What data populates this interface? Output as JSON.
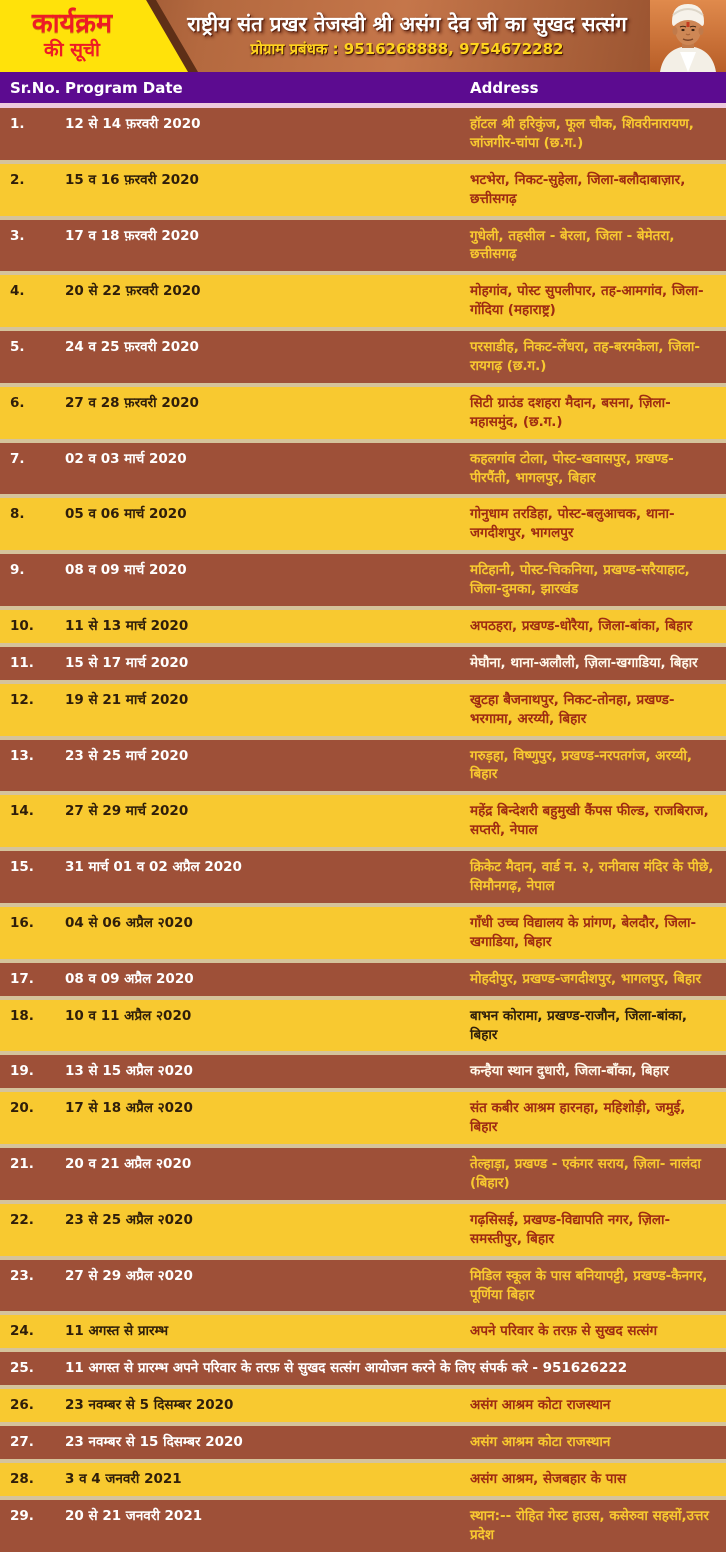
{
  "header": {
    "badge_line1": "कार्यक्रम",
    "badge_line2": "की सूची",
    "title": "राष्ट्रीय संत प्रखर तेजस्वी श्री असंग देव जी का सुखद सत्संग",
    "subtitle": "प्रोग्राम प्रबंधक : 9516268888, 9754672282",
    "photo_alt": "saint-portrait"
  },
  "columns": {
    "sr": "Sr.No.",
    "date": "Program Date",
    "address": "Address"
  },
  "colors": {
    "row_brown": "#9E5038",
    "row_yellow": "#F8C930",
    "header_purple": "#5C0B90",
    "badge_yellow": "#FFE20A",
    "badge_text_red": "#EE1C25",
    "separator_cream": "#D5C39B",
    "separator_pink": "#EDC9DD",
    "address_maroon": "#9E2B12",
    "subtitle_yellow": "#FFD41E"
  },
  "rows": [
    {
      "sr": "1.",
      "date": "12 से 14 फ़रवरी 2020",
      "address": "हॉटल श्री हरिकुंज, फूल चौक, शिवरीनारायण, जांजगीर-चांपा (छ.ग.)",
      "theme": "brown",
      "addr_style": "yellow",
      "span": false
    },
    {
      "sr": "2.",
      "date": "15 व 16 फ़रवरी 2020",
      "address": "भटभेरा, निकट-सुहेला, जिला-बलौदाबाज़ार, छत्तीसगढ़",
      "theme": "yellow",
      "addr_style": "maroon",
      "span": false
    },
    {
      "sr": "3.",
      "date": "17 व 18 फ़रवरी 2020",
      "address": "गुधेली, तहसील - बेरला, जिला - बेमेतरा, छत्तीसगढ़",
      "theme": "brown",
      "addr_style": "yellow",
      "span": false
    },
    {
      "sr": "4.",
      "date": "20 से 22 फ़रवरी 2020",
      "address": "मोहगांव, पोस्ट सुपलीपार, तह-आमगांव, जिला-गोंदिया (महाराष्ट्र)",
      "theme": "yellow",
      "addr_style": "maroon",
      "span": false
    },
    {
      "sr": "5.",
      "date": "24 व 25 फ़रवरी 2020",
      "address": "परसाडीह, निकट-लेंधरा, तह-बरमकेला, जिला-रायगढ़ (छ.ग.)",
      "theme": "brown",
      "addr_style": "yellow",
      "span": false
    },
    {
      "sr": "6.",
      "date": "27 व 28 फ़रवरी 2020",
      "address": "सिटी ग्राउंड दशहरा मैदान, बसना, ज़िला-महासमुंद, (छ.ग.)",
      "theme": "yellow",
      "addr_style": "maroon",
      "span": false
    },
    {
      "sr": "7.",
      "date": "02 व 03 मार्च 2020",
      "address": "कहलगांव टोला, पोस्ट-खवासपुर, प्रखण्ड-पीरपैंती, भागलपुर, बिहार",
      "theme": "brown",
      "addr_style": "yellow",
      "span": false
    },
    {
      "sr": "8.",
      "date": "05 व 06 मार्च 2020",
      "address": "गोनुधाम तरडिहा, पोस्ट-बलुआचक, थाना-जगदीशपुर, भागलपुर",
      "theme": "yellow",
      "addr_style": "maroon",
      "span": false
    },
    {
      "sr": "9.",
      "date": "08 व 09 मार्च 2020",
      "address": "मटिहानी, पोस्ट-चिकनिया, प्रखण्ड-सरैयाहाट, जिला-दुमका, झारखंड",
      "theme": "brown",
      "addr_style": "yellow",
      "span": false
    },
    {
      "sr": "10.",
      "date": "11 से 13 मार्च 2020",
      "address": "अपठहरा, प्रखण्ड-धोरैया, जिला-बांका, बिहार",
      "theme": "yellow",
      "addr_style": "maroon",
      "span": false
    },
    {
      "sr": "11.",
      "date": "15 से 17 मार्च 2020",
      "address": "मेघौना, थाना-अलौली, ज़िला-खगाडिया, बिहार",
      "theme": "brown",
      "addr_style": "white",
      "span": false
    },
    {
      "sr": "12.",
      "date": "19 से 21 मार्च 2020",
      "address": "खुटहा बैजनाथपुर, निकट-तोनहा, प्रखण्ड-भरगामा, अरय्यी, बिहार",
      "theme": "yellow",
      "addr_style": "maroon",
      "span": false
    },
    {
      "sr": "13.",
      "date": "23 से 25 मार्च 2020",
      "address": "गरुड़हा, विष्णुपुर, प्रखण्ड-नरपतगंज, अरय्यी, बिहार",
      "theme": "brown",
      "addr_style": "yellow",
      "span": false
    },
    {
      "sr": "14.",
      "date": "27 से 29 मार्च 2020",
      "address": "महेंद्र बिन्देशरी बहुमुखी कैंपस फील्ड, राजबिराज, सप्तरी, नेपाल",
      "theme": "yellow",
      "addr_style": "maroon",
      "span": false
    },
    {
      "sr": "15.",
      "date": "31 मार्च 01 व 02 अप्रैल 2020",
      "address": "क्रिकेट मैदान, वार्ड न. २, रानीवास मंदिर के पीछे, सिमौनगढ़, नेपाल",
      "theme": "brown",
      "addr_style": "yellow",
      "span": false
    },
    {
      "sr": "16.",
      "date": "04 से 06 अप्रैल २020",
      "address": "गाँधी उच्च विद्यालय के प्रांगण, बेलदौर, जिला-खगाडिया, बिहार",
      "theme": "yellow",
      "addr_style": "maroon",
      "span": false
    },
    {
      "sr": "17.",
      "date": "08 व 09 अप्रैल 2020",
      "address": "मोहदीपुर, प्रखण्ड-जगदीशपुर, भागलपुर, बिहार",
      "theme": "brown",
      "addr_style": "yellow",
      "span": false
    },
    {
      "sr": "18.",
      "date": "10 व 11 अप्रैल २020",
      "address": "बाभन कोरामा, प्रखण्ड-राजौन, जिला-बांका, बिहार",
      "theme": "yellow",
      "addr_style": "dark",
      "span": false
    },
    {
      "sr": "19.",
      "date": "13 से 15 अप्रैल २020",
      "address": "कन्हैया स्थान दुधारी, जिला-बाँका, बिहार",
      "theme": "brown",
      "addr_style": "white",
      "span": false
    },
    {
      "sr": "20.",
      "date": "17 से 18 अप्रैल २020",
      "address": "संत कबीर आश्रम हारनहा, महिशोड़ी, जमुई, बिहार",
      "theme": "yellow",
      "addr_style": "maroon",
      "span": false
    },
    {
      "sr": "21.",
      "date": "20 व 21 अप्रैल २020",
      "address": "तेल्हाड़ा, प्रखण्ड - एकंगर सराय, ज़िला- नालंदा (बिहार)",
      "theme": "brown",
      "addr_style": "yellow",
      "span": false
    },
    {
      "sr": "22.",
      "date": "23 से 25 अप्रैल २020",
      "address": "गढ़सिसई, प्रखण्ड-विद्यापति नगर, ज़िला-समस्तीपुर, बिहार",
      "theme": "yellow",
      "addr_style": "maroon",
      "span": false
    },
    {
      "sr": "23.",
      "date": "27 से 29 अप्रैल २020",
      "address": "मिडिल स्कूल के पास बनियापट्टी, प्रखण्ड-कैनगर, पूर्णिया बिहार",
      "theme": "brown",
      "addr_style": "yellow",
      "span": false
    },
    {
      "sr": "24.",
      "date": "11 अगस्त से प्रारम्भ",
      "address": "अपने परिवार के तरफ़ से सुखद सत्संग",
      "theme": "yellow",
      "addr_style": "maroon",
      "span": false
    },
    {
      "sr": "25.",
      "date": "11 अगस्त से प्रारम्भ अपने परिवार के तरफ़ से सुखद सत्संग आयोजन करने के लिए संपर्क करे - 951626222",
      "address": "",
      "theme": "brown",
      "addr_style": "white",
      "span": true
    },
    {
      "sr": "26.",
      "date": "23 नवम्बर से 5 दिसम्बर 2020",
      "address": "असंग आश्रम कोटा राजस्थान",
      "theme": "yellow",
      "addr_style": "maroon",
      "span": false
    },
    {
      "sr": "27.",
      "date": "23 नवम्बर से 15 दिसम्बर 2020",
      "address": "असंग आश्रम कोटा राजस्थान",
      "theme": "brown",
      "addr_style": "yellow",
      "span": false
    },
    {
      "sr": "28.",
      "date": "3 व 4 जनवरी 2021",
      "address": "असंग आश्रम, सेजबहार के पास",
      "theme": "yellow",
      "addr_style": "maroon",
      "span": false
    },
    {
      "sr": "29.",
      "date": "20 से 21 जनवरी 2021",
      "address": "स्थान:-- रोहित गेस्ट हाउस, कसेरुवा सहसों,उत्तर प्रदेश",
      "theme": "brown",
      "addr_style": "yellow",
      "span": false
    }
  ]
}
